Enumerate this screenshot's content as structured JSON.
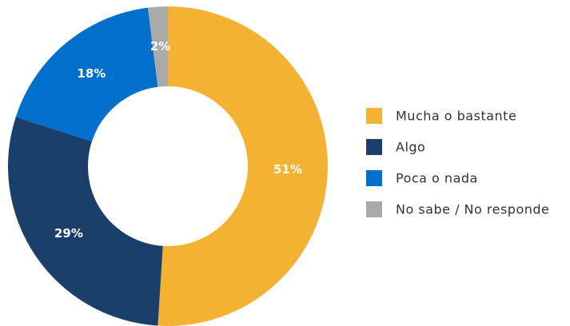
{
  "chart_data": {
    "type": "donut",
    "categories": [
      "Mucha o bastante",
      "Algo",
      "Poca o nada",
      "No sabe / No responde"
    ],
    "values": [
      51,
      29,
      18,
      2
    ],
    "value_labels": [
      "51%",
      "29%",
      "18%",
      "2%"
    ],
    "colors": [
      "#F4B233",
      "#1B3F6B",
      "#0070CC",
      "#AAAAAA"
    ],
    "legend": "right"
  }
}
